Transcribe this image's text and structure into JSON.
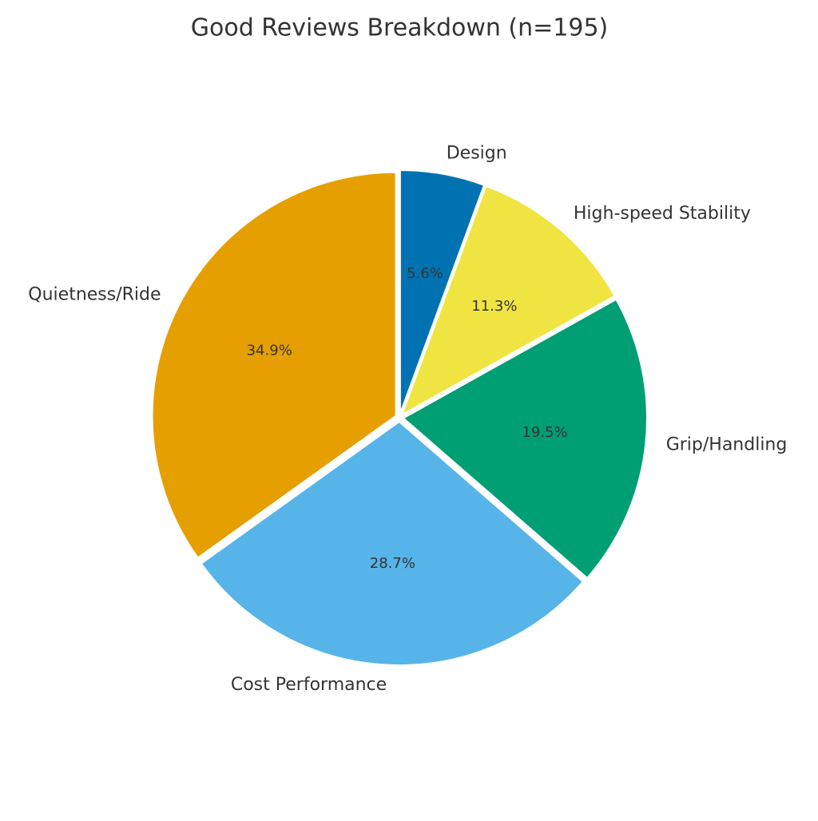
{
  "chart_data": {
    "type": "pie",
    "title": "Good Reviews Breakdown (n=195)",
    "categories": [
      "Design",
      "High-speed Stability",
      "Grip/Handling",
      "Cost Performance",
      "Quietness/Ride"
    ],
    "values": [
      5.6,
      11.3,
      19.5,
      28.7,
      34.9
    ],
    "value_labels": [
      "5.6%",
      "11.3%",
      "19.5%",
      "28.7%",
      "34.9%"
    ],
    "colors": [
      "#0072b2",
      "#f0e442",
      "#009e73",
      "#56b4e9",
      "#e69f00"
    ]
  }
}
